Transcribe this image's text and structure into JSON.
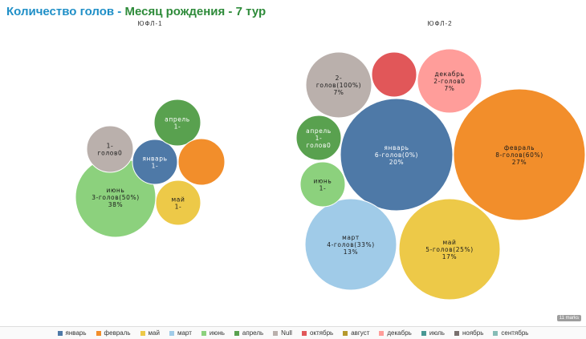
{
  "title": {
    "part1": "Количество голов -",
    "part2": "Месяц рождения - 7 тур"
  },
  "badge": "11 marks",
  "colors": {
    "январь": "#4e79a7",
    "февраль": "#f28e2b",
    "май": "#edc948",
    "март": "#a0cbe8",
    "июнь": "#8cd17d",
    "апрель": "#59a14f",
    "Null": "#bab0ac",
    "октябрь": "#e15759",
    "август": "#b6992d",
    "декабрь": "#ff9d9a",
    "июль": "#499894",
    "ноябрь": "#79706e",
    "сентябрь": "#86bcb6"
  },
  "chart_data": {
    "type": "bubble",
    "legend": [
      "январь",
      "февраль",
      "май",
      "март",
      "июнь",
      "апрель",
      "Null",
      "октябрь",
      "август",
      "декабрь",
      "июль",
      "ноябрь",
      "сентябрь"
    ],
    "panels": [
      {
        "name": "ЮФЛ-1",
        "bubbles": [
          {
            "month": "июнь",
            "lines": [
              "июнь",
              "3-голов(50%)",
              "38%"
            ]
          },
          {
            "month": "Null",
            "lines": [
              "1-",
              "голов0"
            ]
          },
          {
            "month": "январь",
            "lines": [
              "январь",
              "1-"
            ]
          },
          {
            "month": "апрель",
            "lines": [
              "апрель",
              "1-"
            ]
          },
          {
            "month": "февраль",
            "lines": []
          },
          {
            "month": "май",
            "lines": [
              "май",
              "1-"
            ]
          }
        ]
      },
      {
        "name": "ЮФЛ-2",
        "bubbles": [
          {
            "month": "февраль",
            "lines": [
              "февраль",
              "8-голов(60%)",
              "27%"
            ]
          },
          {
            "month": "январь",
            "lines": [
              "январь",
              "6-голов(0%)",
              "20%"
            ]
          },
          {
            "month": "май",
            "lines": [
              "май",
              "5-голов(25%)",
              "17%"
            ]
          },
          {
            "month": "март",
            "lines": [
              "март",
              "4-голов(33%)",
              "13%"
            ]
          },
          {
            "month": "Null",
            "lines": [
              "2-",
              "голов(100%)",
              "7%"
            ]
          },
          {
            "month": "декабрь",
            "lines": [
              "декабрь",
              "2-голов0",
              "7%"
            ]
          },
          {
            "month": "октябрь",
            "lines": []
          },
          {
            "month": "апрель",
            "lines": [
              "апрель",
              "1-",
              "голов0"
            ]
          },
          {
            "month": "июнь",
            "lines": [
              "июнь",
              "1-"
            ]
          }
        ]
      }
    ]
  }
}
